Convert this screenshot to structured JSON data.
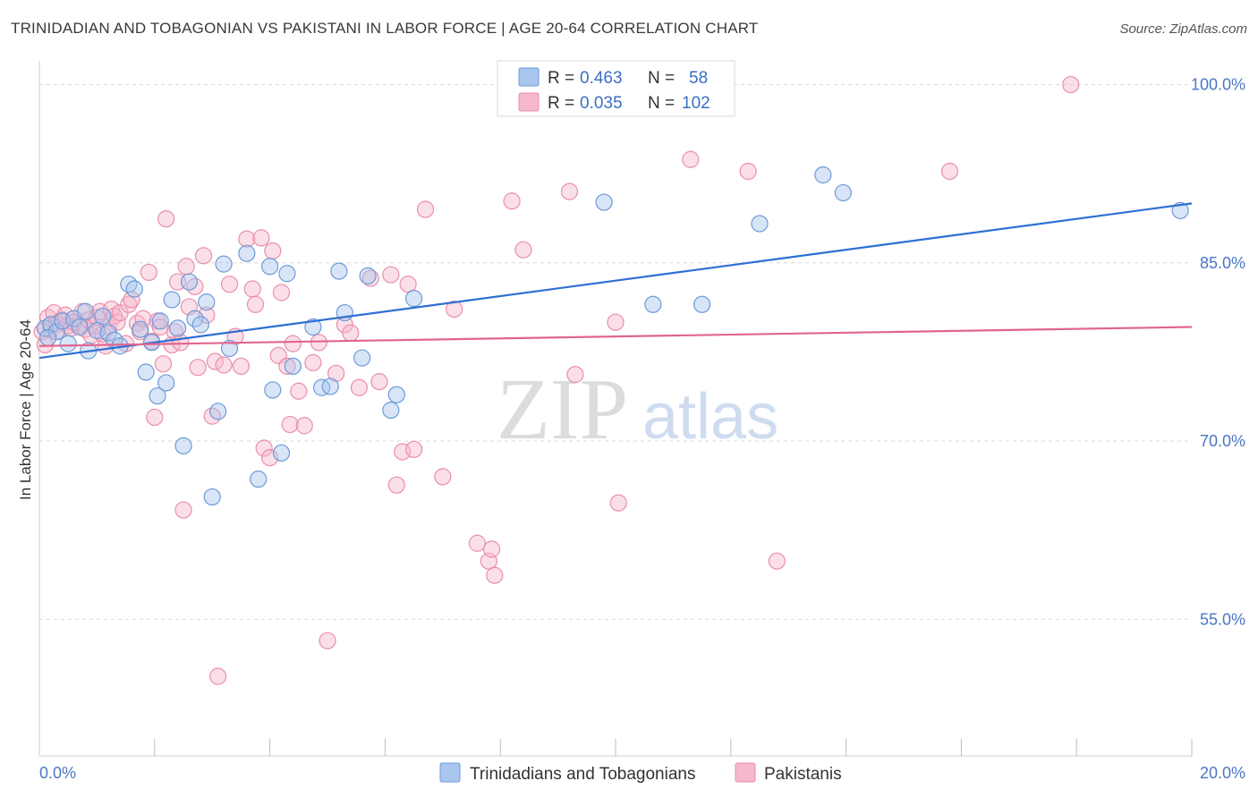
{
  "header": {
    "title": "TRINIDADIAN AND TOBAGONIAN VS PAKISTANI IN LABOR FORCE | AGE 20-64 CORRELATION CHART",
    "source": "Source: ZipAtlas.com"
  },
  "watermark": {
    "zip": "ZIP",
    "atlas": "atlas"
  },
  "colors": {
    "blue_fill": "#a9c6ee",
    "blue_stroke": "#6d9ad8",
    "blue_line": "#2d6fd3",
    "pink_fill": "#f6b8cb",
    "pink_stroke": "#e98ea9",
    "pink_line": "#e0668f",
    "grid": "#d8d8d8",
    "tick_text": "#4a77c4"
  },
  "legend": {
    "rows": [
      {
        "r_label": "R = ",
        "r_value": "0.463",
        "n_label": "N = ",
        "n_value": "58"
      },
      {
        "r_label": "R = ",
        "r_value": "0.035",
        "n_label": "N = ",
        "n_value": "102"
      }
    ]
  },
  "chart_data": {
    "type": "scatter",
    "title": "TRINIDADIAN AND TOBAGONIAN VS PAKISTANI IN LABOR FORCE | AGE 20-64 CORRELATION CHART",
    "xlabel": "",
    "ylabel": "In Labor Force | Age 20-64",
    "xlim": [
      0,
      20
    ],
    "ylim": [
      43.5,
      102
    ],
    "x_tick_labels": [
      "0.0%",
      "20.0%"
    ],
    "y_ticks": [
      55,
      70,
      85,
      100
    ],
    "y_tick_labels": [
      "55.0%",
      "70.0%",
      "85.0%",
      "100.0%"
    ],
    "grid": true,
    "legend_position": "top-center",
    "series": [
      {
        "name": "Trinidadians and Tobagonians",
        "color": "#a9c6ee",
        "trend": {
          "x": [
            0,
            20
          ],
          "y": [
            77.0,
            90.0
          ]
        },
        "points": [
          [
            0.1,
            79.5
          ],
          [
            0.2,
            79.8
          ],
          [
            0.3,
            79.2
          ],
          [
            0.4,
            80.1
          ],
          [
            0.5,
            78.2
          ],
          [
            0.6,
            80.3
          ],
          [
            0.7,
            79.6
          ],
          [
            0.8,
            80.9
          ],
          [
            0.85,
            77.6
          ],
          [
            1.0,
            79.3
          ],
          [
            1.1,
            80.5
          ],
          [
            1.2,
            79.1
          ],
          [
            1.3,
            78.5
          ],
          [
            1.4,
            78.0
          ],
          [
            1.55,
            83.2
          ],
          [
            1.65,
            82.8
          ],
          [
            1.75,
            79.4
          ],
          [
            1.85,
            75.8
          ],
          [
            1.95,
            78.3
          ],
          [
            2.05,
            73.8
          ],
          [
            2.1,
            80.1
          ],
          [
            2.2,
            74.9
          ],
          [
            2.3,
            81.9
          ],
          [
            2.4,
            79.5
          ],
          [
            2.5,
            69.6
          ],
          [
            2.6,
            83.4
          ],
          [
            2.7,
            80.3
          ],
          [
            2.8,
            79.8
          ],
          [
            2.9,
            81.7
          ],
          [
            3.0,
            65.3
          ],
          [
            3.1,
            72.5
          ],
          [
            3.2,
            84.9
          ],
          [
            3.3,
            77.8
          ],
          [
            3.6,
            85.8
          ],
          [
            3.8,
            66.8
          ],
          [
            4.0,
            84.7
          ],
          [
            4.05,
            74.3
          ],
          [
            4.2,
            69.0
          ],
          [
            4.3,
            84.1
          ],
          [
            4.4,
            76.3
          ],
          [
            4.75,
            79.6
          ],
          [
            4.9,
            74.5
          ],
          [
            5.05,
            74.6
          ],
          [
            5.2,
            84.3
          ],
          [
            5.3,
            80.8
          ],
          [
            5.6,
            77.0
          ],
          [
            5.7,
            83.9
          ],
          [
            6.1,
            72.6
          ],
          [
            6.2,
            73.9
          ],
          [
            6.5,
            82.0
          ],
          [
            9.8,
            90.1
          ],
          [
            10.65,
            81.5
          ],
          [
            11.5,
            81.5
          ],
          [
            12.5,
            88.3
          ],
          [
            13.6,
            92.4
          ],
          [
            13.95,
            90.9
          ],
          [
            19.8,
            89.4
          ],
          [
            0.15,
            78.7
          ]
        ]
      },
      {
        "name": "Pakistanis",
        "color": "#f6b8cb",
        "trend": {
          "x": [
            0,
            20
          ],
          "y": [
            78.0,
            79.6
          ]
        },
        "points": [
          [
            0.05,
            79.2
          ],
          [
            0.1,
            78.1
          ],
          [
            0.15,
            80.4
          ],
          [
            0.2,
            79.4
          ],
          [
            0.25,
            80.8
          ],
          [
            0.3,
            79.9
          ],
          [
            0.35,
            79.3
          ],
          [
            0.4,
            80.2
          ],
          [
            0.45,
            80.6
          ],
          [
            0.5,
            79.7
          ],
          [
            0.55,
            79.5
          ],
          [
            0.6,
            80.0
          ],
          [
            0.7,
            79.8
          ],
          [
            0.75,
            80.9
          ],
          [
            0.8,
            79.4
          ],
          [
            0.85,
            80.2
          ],
          [
            0.9,
            78.9
          ],
          [
            0.95,
            79.7
          ],
          [
            1.0,
            80.4
          ],
          [
            1.05,
            80.9
          ],
          [
            1.1,
            79.0
          ],
          [
            1.15,
            78.0
          ],
          [
            1.2,
            79.6
          ],
          [
            1.25,
            81.1
          ],
          [
            1.3,
            80.5
          ],
          [
            1.35,
            80.0
          ],
          [
            1.4,
            80.8
          ],
          [
            1.5,
            78.2
          ],
          [
            1.55,
            81.5
          ],
          [
            1.6,
            81.9
          ],
          [
            1.7,
            79.9
          ],
          [
            1.75,
            79.2
          ],
          [
            1.8,
            80.3
          ],
          [
            1.9,
            84.2
          ],
          [
            1.95,
            78.4
          ],
          [
            2.0,
            72.0
          ],
          [
            2.05,
            80.1
          ],
          [
            2.1,
            79.6
          ],
          [
            2.15,
            76.5
          ],
          [
            2.2,
            88.7
          ],
          [
            2.3,
            78.1
          ],
          [
            2.35,
            79.2
          ],
          [
            2.4,
            83.4
          ],
          [
            2.45,
            78.3
          ],
          [
            2.5,
            64.2
          ],
          [
            2.55,
            84.7
          ],
          [
            2.6,
            81.3
          ],
          [
            2.7,
            83.0
          ],
          [
            2.75,
            76.2
          ],
          [
            2.85,
            85.6
          ],
          [
            2.9,
            80.6
          ],
          [
            3.0,
            72.1
          ],
          [
            3.05,
            76.7
          ],
          [
            3.1,
            50.2
          ],
          [
            3.2,
            76.4
          ],
          [
            3.3,
            83.2
          ],
          [
            3.4,
            78.8
          ],
          [
            3.5,
            76.3
          ],
          [
            3.6,
            87.0
          ],
          [
            3.7,
            82.8
          ],
          [
            3.75,
            81.5
          ],
          [
            3.85,
            87.1
          ],
          [
            3.9,
            69.4
          ],
          [
            4.0,
            68.6
          ],
          [
            4.05,
            86.0
          ],
          [
            4.15,
            77.2
          ],
          [
            4.2,
            82.5
          ],
          [
            4.3,
            76.3
          ],
          [
            4.35,
            71.4
          ],
          [
            4.4,
            78.2
          ],
          [
            4.5,
            74.2
          ],
          [
            4.6,
            71.3
          ],
          [
            4.75,
            76.6
          ],
          [
            4.85,
            78.3
          ],
          [
            5.0,
            53.2
          ],
          [
            5.15,
            75.7
          ],
          [
            5.3,
            79.8
          ],
          [
            5.4,
            79.1
          ],
          [
            5.55,
            74.5
          ],
          [
            5.75,
            83.7
          ],
          [
            5.9,
            75.0
          ],
          [
            6.1,
            84.0
          ],
          [
            6.2,
            66.3
          ],
          [
            6.3,
            69.1
          ],
          [
            6.4,
            83.2
          ],
          [
            6.5,
            69.3
          ],
          [
            6.7,
            89.5
          ],
          [
            7.0,
            67.0
          ],
          [
            7.2,
            81.1
          ],
          [
            7.6,
            61.4
          ],
          [
            7.8,
            59.9
          ],
          [
            7.85,
            60.9
          ],
          [
            7.9,
            58.7
          ],
          [
            8.2,
            90.2
          ],
          [
            8.4,
            86.1
          ],
          [
            9.2,
            91.0
          ],
          [
            9.3,
            75.6
          ],
          [
            10.0,
            80.0
          ],
          [
            10.05,
            64.8
          ],
          [
            11.3,
            93.7
          ],
          [
            12.3,
            92.7
          ],
          [
            12.8,
            59.9
          ],
          [
            15.8,
            92.7
          ],
          [
            17.9,
            100.0
          ]
        ]
      }
    ]
  }
}
